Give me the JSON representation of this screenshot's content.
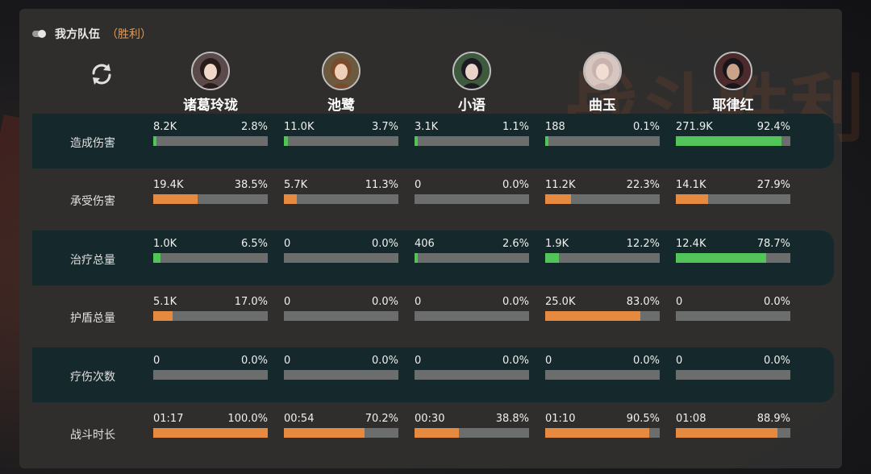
{
  "header": {
    "team_label": "我方队伍",
    "result_label": "（胜利）"
  },
  "watermark": "战斗胜利",
  "players": [
    {
      "name": "诸葛玲珑"
    },
    {
      "name": "池鹭"
    },
    {
      "name": "小语"
    },
    {
      "name": "曲玉"
    },
    {
      "name": "耶律红"
    }
  ],
  "colors": {
    "green": "#52c45a",
    "orange": "#e58a3e",
    "bar_bg": "#6b6e6c",
    "row_dark": "#15282b"
  },
  "stats": [
    {
      "label": "造成伤害",
      "color": "green",
      "cells": [
        {
          "value": "8.2K",
          "percent": "2.8%",
          "fraction": 0.028
        },
        {
          "value": "11.0K",
          "percent": "3.7%",
          "fraction": 0.037
        },
        {
          "value": "3.1K",
          "percent": "1.1%",
          "fraction": 0.011
        },
        {
          "value": "188",
          "percent": "0.1%",
          "fraction": 0.001
        },
        {
          "value": "271.9K",
          "percent": "92.4%",
          "fraction": 0.924
        }
      ]
    },
    {
      "label": "承受伤害",
      "color": "orange",
      "cells": [
        {
          "value": "19.4K",
          "percent": "38.5%",
          "fraction": 0.385
        },
        {
          "value": "5.7K",
          "percent": "11.3%",
          "fraction": 0.113
        },
        {
          "value": "0",
          "percent": "0.0%",
          "fraction": 0.0
        },
        {
          "value": "11.2K",
          "percent": "22.3%",
          "fraction": 0.223
        },
        {
          "value": "14.1K",
          "percent": "27.9%",
          "fraction": 0.279
        }
      ]
    },
    {
      "label": "治疗总量",
      "color": "green",
      "cells": [
        {
          "value": "1.0K",
          "percent": "6.5%",
          "fraction": 0.065
        },
        {
          "value": "0",
          "percent": "0.0%",
          "fraction": 0.0
        },
        {
          "value": "406",
          "percent": "2.6%",
          "fraction": 0.026
        },
        {
          "value": "1.9K",
          "percent": "12.2%",
          "fraction": 0.122
        },
        {
          "value": "12.4K",
          "percent": "78.7%",
          "fraction": 0.787
        }
      ]
    },
    {
      "label": "护盾总量",
      "color": "orange",
      "cells": [
        {
          "value": "5.1K",
          "percent": "17.0%",
          "fraction": 0.17
        },
        {
          "value": "0",
          "percent": "0.0%",
          "fraction": 0.0
        },
        {
          "value": "0",
          "percent": "0.0%",
          "fraction": 0.0
        },
        {
          "value": "25.0K",
          "percent": "83.0%",
          "fraction": 0.83
        },
        {
          "value": "0",
          "percent": "0.0%",
          "fraction": 0.0
        }
      ]
    },
    {
      "label": "疗伤次数",
      "color": "green",
      "cells": [
        {
          "value": "0",
          "percent": "0.0%",
          "fraction": 0.0
        },
        {
          "value": "0",
          "percent": "0.0%",
          "fraction": 0.0
        },
        {
          "value": "0",
          "percent": "0.0%",
          "fraction": 0.0
        },
        {
          "value": "0",
          "percent": "0.0%",
          "fraction": 0.0
        },
        {
          "value": "0",
          "percent": "0.0%",
          "fraction": 0.0
        }
      ]
    },
    {
      "label": "战斗时长",
      "color": "orange",
      "cells": [
        {
          "value": "01:17",
          "percent": "100.0%",
          "fraction": 1.0
        },
        {
          "value": "00:54",
          "percent": "70.2%",
          "fraction": 0.702
        },
        {
          "value": "00:30",
          "percent": "38.8%",
          "fraction": 0.388
        },
        {
          "value": "01:10",
          "percent": "90.5%",
          "fraction": 0.905
        },
        {
          "value": "01:08",
          "percent": "88.9%",
          "fraction": 0.889
        }
      ]
    }
  ]
}
